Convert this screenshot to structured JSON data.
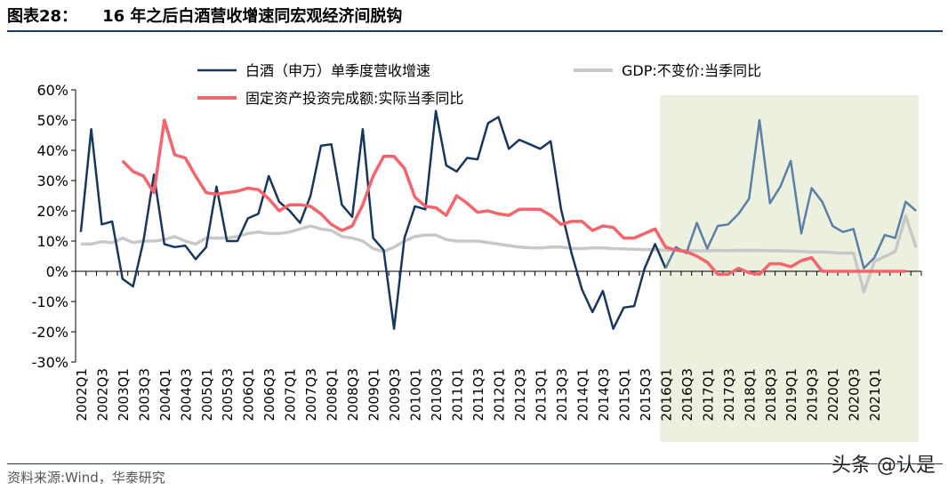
{
  "header": {
    "figure_label": "图表28：",
    "title": "16 年之后白酒营收增速同宏观经济间脱钩"
  },
  "source": "资料来源:Wind，华泰研究",
  "watermark": "头条 @认是",
  "colors": {
    "baijiu": "#17375e",
    "baijiu_shaded": "#5b7fa6",
    "gdp": "#c8c8c8",
    "fai": "#f4646a",
    "shade": "#ebf1de",
    "title_rule": "#1f3a68"
  },
  "chart_data": {
    "type": "line",
    "ylim": [
      -30,
      60
    ],
    "yticks": [
      -30,
      -20,
      -10,
      0,
      10,
      20,
      30,
      40,
      50,
      60
    ],
    "ytick_labels": [
      "-30%",
      "-20%",
      "-10%",
      "0%",
      "10%",
      "20%",
      "30%",
      "40%",
      "50%",
      "60%"
    ],
    "xtick_labels": [
      "2002Q1",
      "2002Q3",
      "2003Q1",
      "2003Q3",
      "2004Q1",
      "2004Q3",
      "2005Q1",
      "2005Q3",
      "2006Q1",
      "2006Q3",
      "2007Q1",
      "2007Q3",
      "2008Q1",
      "2008Q3",
      "2009Q1",
      "2009Q3",
      "2010Q1",
      "2010Q3",
      "2011Q1",
      "2011Q3",
      "2012Q1",
      "2012Q3",
      "2013Q1",
      "2013Q3",
      "2014Q1",
      "2014Q3",
      "2015Q1",
      "2015Q3",
      "2016Q1",
      "2016Q3",
      "2017Q1",
      "2017Q3",
      "2018Q1",
      "2018Q3",
      "2019Q1",
      "2019Q3",
      "2020Q1",
      "2020Q3",
      "2021Q1"
    ],
    "shaded_from": "2016Q1",
    "series": [
      {
        "name": "白酒（申万）单季度营收增速",
        "key": "baijiu",
        "values": [
          13,
          47,
          15.5,
          16.5,
          -2.5,
          -5,
          10,
          32,
          9,
          8,
          8.5,
          4,
          8,
          28,
          10,
          10,
          17.5,
          19,
          31.5,
          23,
          20,
          16,
          25,
          41.5,
          42,
          22,
          18,
          47,
          11,
          7,
          -19,
          11,
          21.5,
          20.5,
          53,
          35,
          33,
          37.5,
          37,
          49,
          51,
          40.5,
          43.5,
          42,
          40.5,
          43,
          20.5,
          6,
          -6,
          -13.5,
          -6.5,
          -19,
          -12,
          -11.5,
          1,
          9,
          1,
          8,
          6,
          16,
          7.5,
          15,
          15.5,
          19,
          24,
          50,
          22.5,
          28,
          36.5,
          12.5,
          27.5,
          23,
          15,
          13,
          14,
          1,
          4.5,
          12,
          11,
          23,
          20
        ]
      },
      {
        "name": "GDP:不变价:当季同比",
        "key": "gdp",
        "values": [
          9,
          9,
          9.8,
          9.5,
          11,
          9.5,
          10,
          10,
          10.5,
          11.5,
          10,
          9,
          11,
          11,
          11,
          11.5,
          12.5,
          13,
          12.5,
          12.5,
          13,
          14,
          15,
          14,
          13.5,
          11.5,
          11,
          10,
          7.5,
          6.5,
          8,
          10,
          11.5,
          12,
          12,
          10.5,
          10,
          10,
          10,
          9.5,
          9,
          8.5,
          8,
          7.8,
          7.7,
          8,
          8,
          7.6,
          7.5,
          7.7,
          7.7,
          7.5,
          7.4,
          7.3,
          7.2,
          7.1,
          7,
          7,
          6.8,
          6.8,
          6.8,
          6.9,
          6.8,
          6.9,
          6.9,
          6.9,
          6.8,
          6.8,
          6.7,
          6.6,
          6.4,
          6.4,
          6.2,
          6,
          6,
          -6.8,
          3.2,
          4.9,
          6.5,
          18.3,
          7.9
        ]
      },
      {
        "name": "固定资产投资完成额:实际当季同比",
        "key": "fai",
        "start": 4,
        "values": [
          36.5,
          33,
          31.5,
          26,
          50,
          38.5,
          37.5,
          31.5,
          26,
          25.5,
          26,
          26.5,
          27.5,
          27,
          24,
          20,
          22,
          22,
          21.5,
          19,
          15.5,
          13.5,
          15,
          22,
          31.5,
          38,
          38,
          34,
          24.5,
          21.5,
          21,
          18.5,
          25,
          22.5,
          19.5,
          20,
          19,
          18.5,
          20.5,
          20.5,
          20.5,
          18.5,
          15.5,
          16.5,
          16.5,
          13.5,
          15,
          14.5,
          11,
          11,
          12.5,
          14,
          8,
          7,
          6.5,
          5,
          3,
          -1,
          -1,
          1,
          -0.5,
          -1,
          2.5,
          2.5,
          1.5,
          3.5,
          4.5,
          0,
          0,
          0,
          0,
          0,
          0,
          0,
          0,
          0
        ]
      }
    ]
  }
}
